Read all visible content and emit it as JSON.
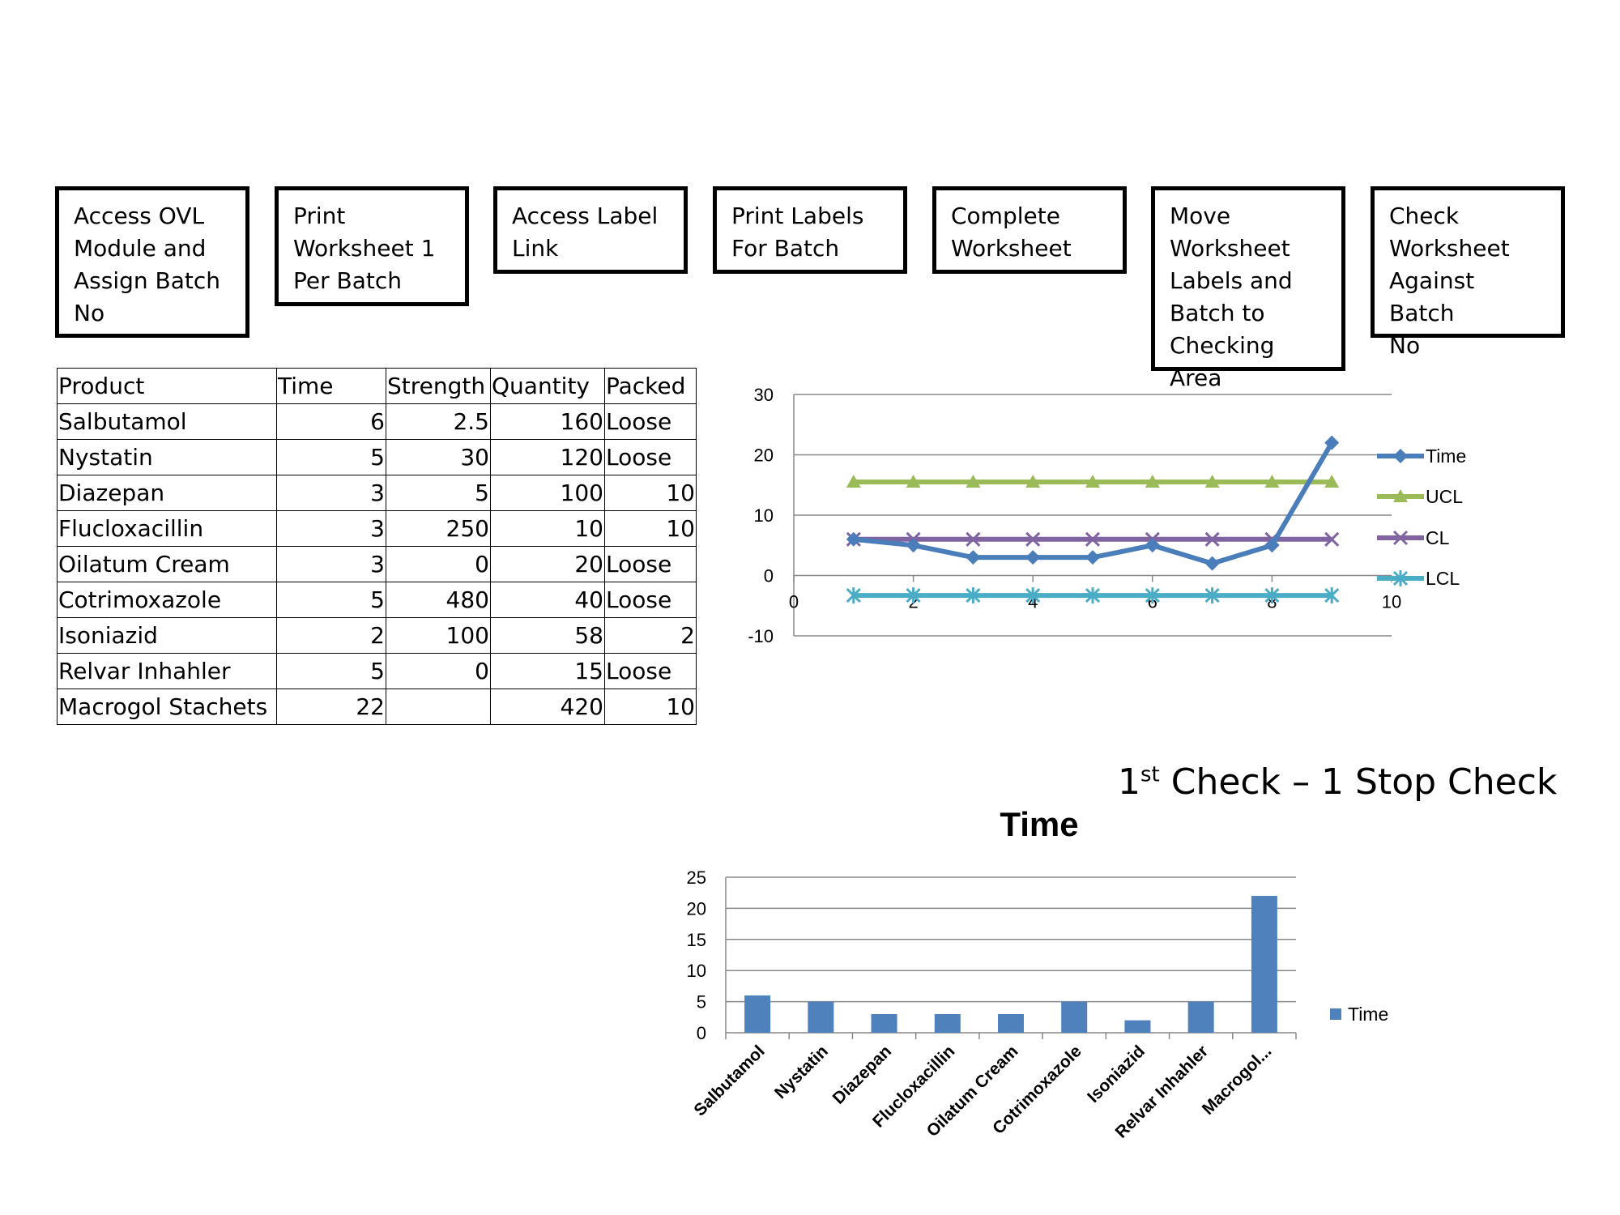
{
  "steps": [
    "Access OVL\nModule and\nAssign Batch\nNo",
    "Print\nWorksheet 1\nPer Batch",
    "Access Label\nLink",
    "Print Labels\nFor Batch",
    "Complete\nWorksheet",
    "Move\nWorksheet\nLabels and\nBatch to\nChecking Area",
    "Check\nWorksheet\nAgainst Batch\nNo"
  ],
  "table": {
    "headers": [
      "Product",
      "Time",
      "Strength",
      "Quantity",
      "Packed"
    ],
    "rows": [
      [
        "Salbutamol",
        "6",
        "2.5",
        "160",
        "Loose"
      ],
      [
        "Nystatin",
        "5",
        "30",
        "120",
        "Loose"
      ],
      [
        "Diazepan",
        "3",
        "5",
        "100",
        "10"
      ],
      [
        "Flucloxacillin",
        "3",
        "250",
        "10",
        "10"
      ],
      [
        "Oilatum Cream",
        "3",
        "0",
        "20",
        "Loose"
      ],
      [
        "Cotrimoxazole",
        "5",
        "480",
        "40",
        "Loose"
      ],
      [
        "Isoniazid",
        "2",
        "100",
        "58",
        "2"
      ],
      [
        "Relvar Inhahler",
        "5",
        "0",
        "15",
        "Loose"
      ],
      [
        "Macrogol Stachets",
        "22",
        "",
        "420",
        "10"
      ]
    ]
  },
  "heading": {
    "prefix": "1",
    "sup": "st",
    "rest": " Check – 1 Stop Check"
  },
  "chart_data": [
    {
      "type": "line",
      "title": "",
      "xlabel": "",
      "ylabel": "",
      "xlim": [
        0,
        10
      ],
      "ylim": [
        -10,
        30
      ],
      "x_ticks": [
        "0",
        "2",
        "4",
        "6",
        "8",
        "10"
      ],
      "y_ticks": [
        "30",
        "20",
        "10",
        "0",
        "-10"
      ],
      "grid": "horizontal",
      "legend": "right",
      "x": [
        1,
        2,
        3,
        4,
        5,
        6,
        7,
        8,
        9
      ],
      "series": [
        {
          "name": "Time",
          "color": "#4a7ebb",
          "marker": "diamond",
          "values": [
            6,
            5,
            3,
            3,
            3,
            5,
            2,
            5,
            22
          ]
        },
        {
          "name": "UCL",
          "color": "#9bbb59",
          "marker": "triangle",
          "values": [
            15.5,
            15.5,
            15.5,
            15.5,
            15.5,
            15.5,
            15.5,
            15.5,
            15.5
          ]
        },
        {
          "name": "CL",
          "color": "#8064a2",
          "marker": "x",
          "values": [
            6,
            6,
            6,
            6,
            6,
            6,
            6,
            6,
            6
          ]
        },
        {
          "name": "LCL",
          "color": "#4bacc6",
          "marker": "star",
          "values": [
            -3.3,
            -3.3,
            -3.3,
            -3.3,
            -3.3,
            -3.3,
            -3.3,
            -3.3,
            -3.3
          ]
        }
      ]
    },
    {
      "type": "bar",
      "title": "Time",
      "xlabel": "",
      "ylabel": "",
      "ylim": [
        0,
        25
      ],
      "y_ticks": [
        "25",
        "20",
        "15",
        "10",
        "5",
        "0"
      ],
      "grid": "horizontal",
      "legend": "right",
      "categories": [
        "Salbutamol",
        "Nystatin",
        "Diazepan",
        "Flucloxacillin",
        "Oilatum Cream",
        "Cotrimoxazole",
        "Isoniazid",
        "Relvar Inhahler",
        "Macrogol..."
      ],
      "series": [
        {
          "name": "Time",
          "color": "#4f81bd",
          "values": [
            6,
            5,
            3,
            3,
            3,
            5,
            2,
            5,
            22
          ]
        }
      ]
    }
  ]
}
